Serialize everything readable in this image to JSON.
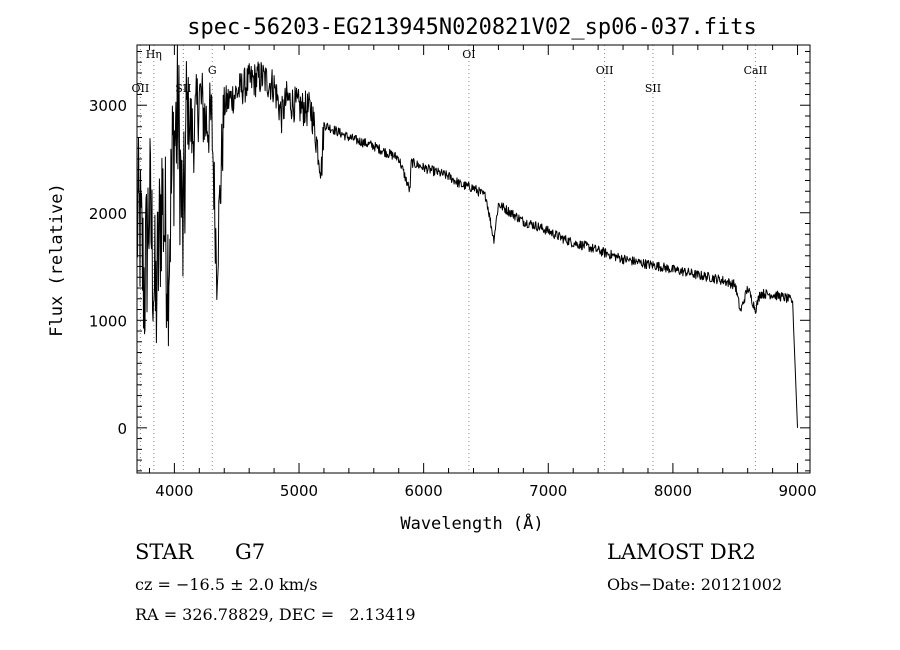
{
  "chart_data": {
    "type": "line",
    "title": "spec-56203-EG213945N020821V02_sp06-037.fits",
    "xlabel": "Wavelength (Å)",
    "ylabel": "Flux (relative)",
    "xlim": [
      3700,
      9100
    ],
    "ylim": [
      -420,
      3560
    ],
    "x_ticks": [
      4000,
      5000,
      6000,
      7000,
      8000,
      9000
    ],
    "y_ticks": [
      0,
      1000,
      2000,
      3000
    ],
    "grid": false,
    "line_color": "#000000",
    "series": [
      {
        "name": "",
        "x": [
          3720,
          3760,
          3800,
          3850,
          3900,
          3950,
          3990,
          4030,
          4070,
          4100,
          4150,
          4200,
          4250,
          4300,
          4340,
          4400,
          4500,
          4600,
          4700,
          4800,
          4860,
          4900,
          5000,
          5100,
          5180,
          5200,
          5300,
          5400,
          5500,
          5600,
          5700,
          5800,
          5890,
          5900,
          6000,
          6100,
          6200,
          6300,
          6400,
          6500,
          6563,
          6600,
          6700,
          6800,
          6900,
          7000,
          7100,
          7200,
          7300,
          7400,
          7500,
          7600,
          7700,
          7800,
          7900,
          8000,
          8100,
          8200,
          8300,
          8400,
          8500,
          8542,
          8600,
          8662,
          8700,
          8800,
          8900,
          8960,
          8980,
          9000
        ],
        "y": [
          1900,
          1300,
          2100,
          1100,
          2200,
          1500,
          2600,
          2900,
          1700,
          3000,
          2700,
          3100,
          2850,
          2850,
          1500,
          3000,
          3120,
          3220,
          3260,
          3180,
          2900,
          3060,
          2980,
          2950,
          2400,
          2820,
          2760,
          2700,
          2660,
          2620,
          2560,
          2510,
          2200,
          2470,
          2420,
          2380,
          2340,
          2260,
          2230,
          2150,
          1750,
          2080,
          2000,
          1920,
          1880,
          1830,
          1770,
          1720,
          1690,
          1650,
          1610,
          1570,
          1545,
          1520,
          1500,
          1470,
          1450,
          1420,
          1400,
          1370,
          1330,
          1080,
          1300,
          1100,
          1250,
          1240,
          1210,
          1180,
          600,
          0
        ]
      }
    ],
    "line_annotations": [
      {
        "label": "OII",
        "x": 3727
      },
      {
        "label": "Hη",
        "x": 3835
      },
      {
        "label": "SII",
        "x": 4072
      },
      {
        "label": "G",
        "x": 4304
      },
      {
        "label": "OI",
        "x": 6363
      },
      {
        "label": "OII",
        "x": 7452
      },
      {
        "label": "SII",
        "x": 7840
      },
      {
        "label": "CaII",
        "x": 8662
      }
    ]
  },
  "object": {
    "class": "STAR",
    "subclass": "G7",
    "survey": "LAMOST DR2",
    "cz": "cz = −16.5 ± 2.0 km/s",
    "obs_date": "Obs−Date: 20121002",
    "coords": "RA = 326.78829, DEC =   2.13419"
  }
}
